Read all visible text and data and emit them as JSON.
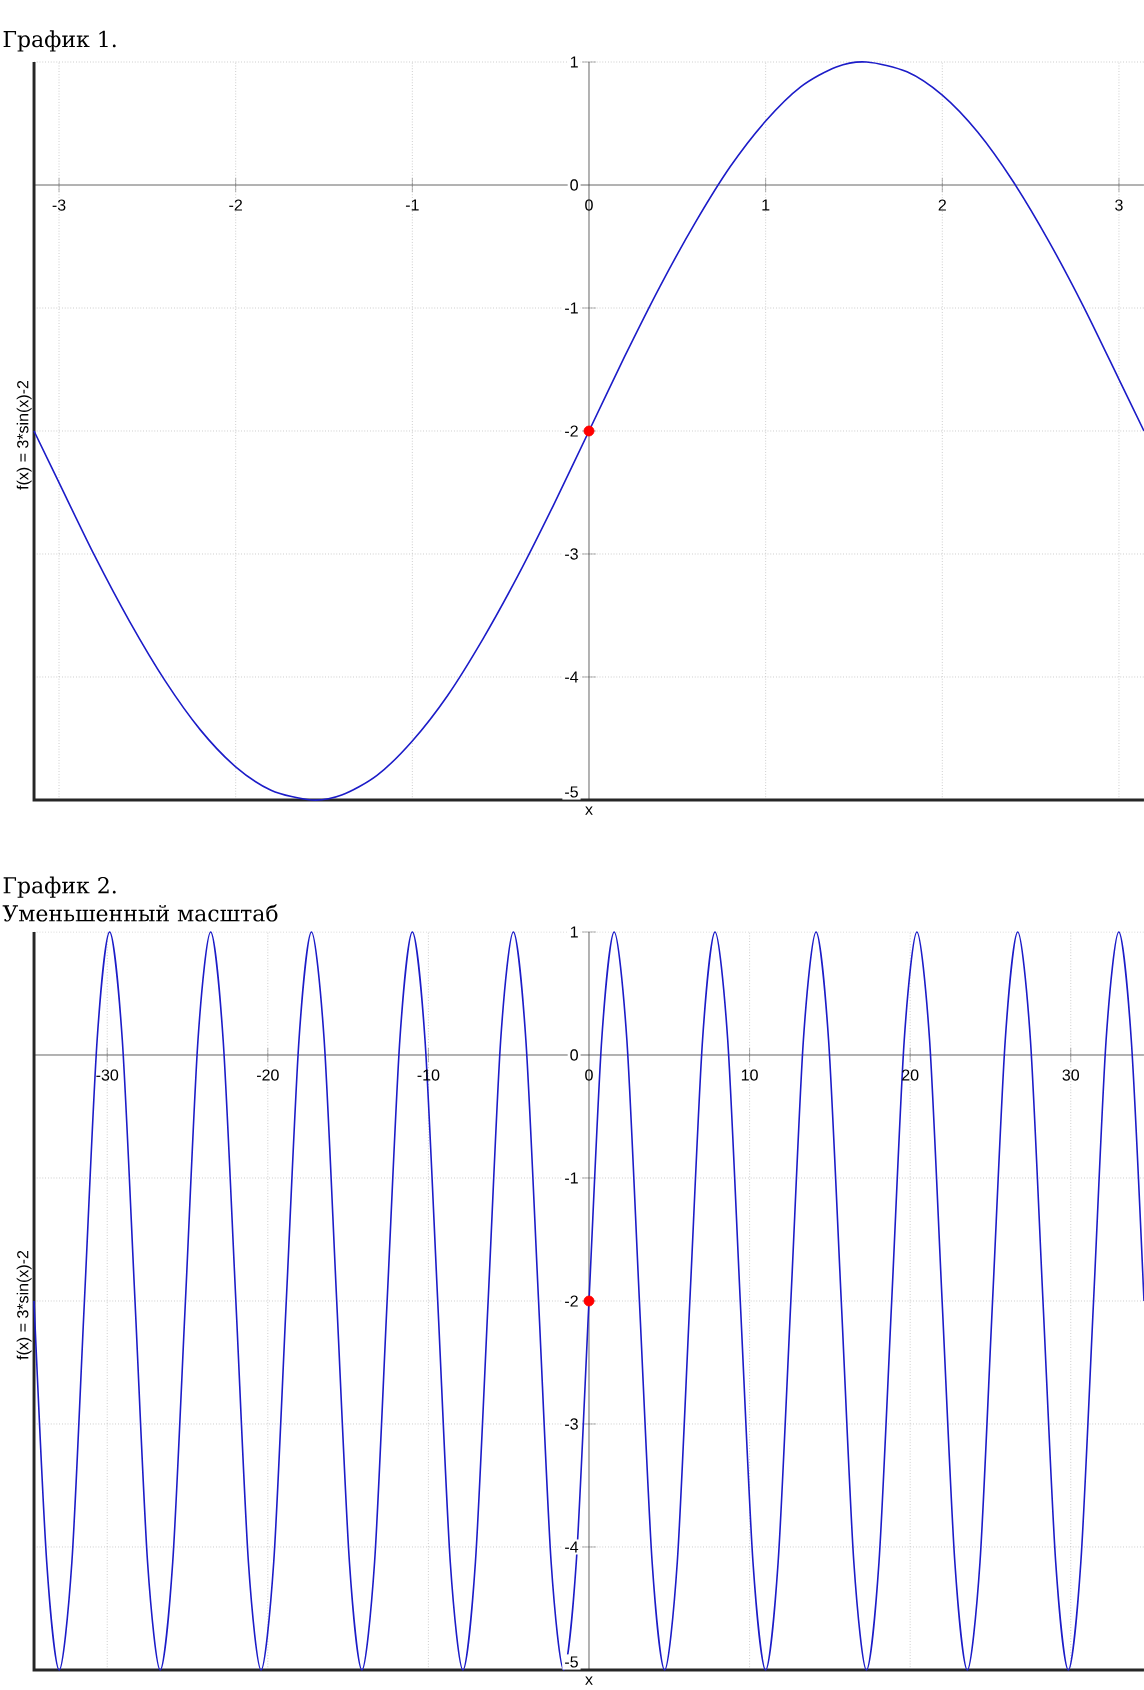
{
  "chart_data": [
    {
      "type": "line",
      "title": "График 1.",
      "xlabel": "x",
      "ylabel": "f(x) = 3*sin(x)-2",
      "xlim": [
        -3.1416,
        3.1416
      ],
      "ylim": [
        -5,
        1
      ],
      "xticks": [
        -3,
        -2,
        -1,
        0,
        1,
        2,
        3
      ],
      "yticks": [
        -5,
        -4,
        -3,
        -2,
        -1,
        0,
        1
      ],
      "grid": true,
      "series": [
        {
          "type": "line",
          "color": "#1c1cc8",
          "x": [
            -3.1416,
            -3.0,
            -2.8,
            -2.6,
            -2.4,
            -2.2,
            -2.0,
            -1.8,
            -1.5708,
            -1.4,
            -1.2,
            -1.0,
            -0.8,
            -0.6,
            -0.4,
            -0.2,
            0,
            0.2,
            0.4,
            0.6,
            0.8,
            1.0,
            1.2,
            1.4,
            1.5708,
            1.8,
            2.0,
            2.2,
            2.4,
            2.6,
            2.8,
            3.0,
            3.1416
          ],
          "values": [
            -2,
            -2.42,
            -3.01,
            -3.55,
            -4.03,
            -4.43,
            -4.73,
            -4.92,
            -5,
            -4.96,
            -4.8,
            -4.52,
            -4.15,
            -3.69,
            -3.17,
            -2.6,
            -2,
            -1.4,
            -0.83,
            -0.31,
            0.15,
            0.52,
            0.8,
            0.96,
            1,
            0.92,
            0.73,
            0.43,
            0.03,
            -0.45,
            -0.99,
            -1.58,
            -2
          ]
        },
        {
          "type": "scatter",
          "color": "#ff0000",
          "x": [
            0
          ],
          "values": [
            -2
          ]
        }
      ]
    },
    {
      "type": "line",
      "title": "График 2.",
      "subtitle": "Уменьшенный масштаб",
      "xlabel": "x",
      "ylabel": "f(x) = 3*sin(x)-2",
      "xlim": [
        -34.56,
        34.56
      ],
      "ylim": [
        -5,
        1
      ],
      "xticks": [
        -30,
        -20,
        -10,
        0,
        10,
        20,
        30
      ],
      "yticks": [
        -5,
        -4,
        -3,
        -2,
        -1,
        0,
        1
      ],
      "grid": true,
      "series": [
        {
          "type": "line",
          "color": "#1c1cc8",
          "x": [
            -34.56,
            -33.77,
            -32.99,
            -32.2,
            -31.42,
            -30.63,
            -29.85,
            -29.06,
            -28.27,
            -27.49,
            -26.7,
            -25.92,
            -25.13,
            -24.35,
            -23.56,
            -22.78,
            -21.99,
            -21.21,
            -20.42,
            -19.63,
            -18.85,
            -18.06,
            -17.28,
            -16.49,
            -15.71,
            -14.92,
            -14.14,
            -13.35,
            -12.57,
            -11.78,
            -11.0,
            -10.21,
            -9.42,
            -8.64,
            -7.85,
            -7.07,
            -6.28,
            -5.5,
            -4.71,
            -3.93,
            -3.14,
            -2.36,
            -1.57,
            -0.79,
            0,
            0.79,
            1.57,
            2.36,
            3.14,
            3.93,
            4.71,
            5.5,
            6.28,
            7.07,
            7.85,
            8.64,
            9.42,
            10.21,
            11.0,
            11.78,
            12.57,
            13.35,
            14.14,
            14.92,
            15.71,
            16.49,
            17.28,
            18.06,
            18.85,
            19.63,
            20.42,
            21.21,
            21.99,
            22.78,
            23.56,
            24.35,
            25.13,
            25.92,
            26.7,
            27.49,
            28.27,
            29.06,
            29.85,
            30.63,
            31.42,
            32.2,
            32.99,
            33.77,
            34.56
          ],
          "values": [
            -2,
            -4.12,
            -5,
            -4.12,
            -2,
            0.12,
            1,
            0.12,
            -2,
            -4.12,
            -5,
            -4.12,
            -2,
            0.12,
            1,
            0.12,
            -2,
            -4.12,
            -5,
            -4.12,
            -2,
            0.12,
            1,
            0.12,
            -2,
            -4.12,
            -5,
            -4.12,
            -2,
            0.12,
            1,
            0.12,
            -2,
            -4.12,
            -5,
            -4.12,
            -2,
            0.12,
            1,
            0.12,
            -2,
            -4.12,
            -5,
            -4.12,
            -2,
            0.12,
            1,
            0.12,
            -2,
            -4.12,
            -5,
            -4.12,
            -2,
            0.12,
            1,
            0.12,
            -2,
            -4.12,
            -5,
            -4.12,
            -2,
            0.12,
            1,
            0.12,
            -2,
            -4.12,
            -5,
            -4.12,
            -2,
            0.12,
            1,
            0.12,
            -2,
            -4.12,
            -5,
            -4.12,
            -2,
            0.12,
            1,
            0.12,
            -2,
            -4.12,
            -5,
            -4.12,
            -2,
            0.12,
            1,
            0.12,
            -2
          ]
        },
        {
          "type": "scatter",
          "color": "#ff0000",
          "x": [
            0
          ],
          "values": [
            -2
          ]
        }
      ]
    }
  ]
}
